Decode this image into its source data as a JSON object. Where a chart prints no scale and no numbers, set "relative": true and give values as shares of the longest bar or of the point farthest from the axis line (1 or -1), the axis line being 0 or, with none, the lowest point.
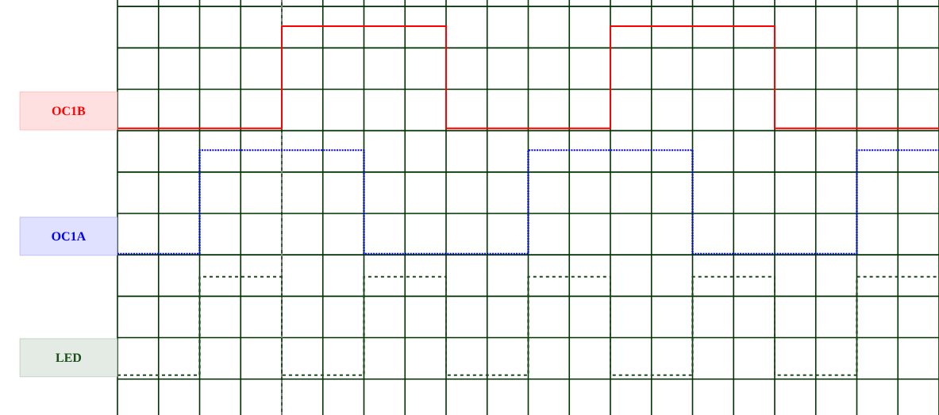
{
  "chart_data": {
    "type": "step",
    "relative": true,
    "grid": true,
    "tick_labels": false,
    "categories": [
      null,
      null,
      null,
      null,
      null,
      null,
      null,
      null,
      null,
      null,
      null,
      null,
      null,
      null,
      null,
      null,
      null,
      null,
      null,
      null,
      null
    ],
    "series": [
      {
        "name": "OC1B",
        "color": "#ff0000",
        "line_style": "solid",
        "values": [
          0.707,
          0.707,
          0.707,
          0.707,
          1,
          1,
          1,
          1,
          0.707,
          0.707,
          0.707,
          0.707,
          1,
          1,
          1,
          1,
          0.707,
          0.707,
          0.707,
          0.707,
          0.707
        ]
      },
      {
        "name": "OC1A",
        "color": "#0000ff",
        "line_style": "dotted",
        "values": [
          0.348,
          0.348,
          0.645,
          0.645,
          0.645,
          0.645,
          0.348,
          0.348,
          0.348,
          0.348,
          0.645,
          0.645,
          0.645,
          0.645,
          0.348,
          0.348,
          0.348,
          0.348,
          0.645,
          0.645,
          0.645
        ]
      },
      {
        "name": "LED",
        "color": "#1a4d1a",
        "line_style": "dashed",
        "values": [
          0,
          0,
          0.282,
          0.282,
          0,
          0,
          0.282,
          0.282,
          0,
          0,
          0.282,
          0.282,
          0,
          0,
          0.282,
          0.282,
          0,
          0,
          0.282,
          0.282,
          0.282
        ]
      }
    ]
  }
}
